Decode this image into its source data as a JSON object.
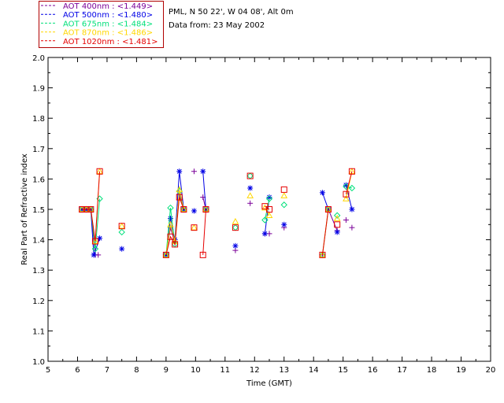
{
  "header": {
    "site_line": "PML, N 50 22', W 04 08', Alt 0m",
    "date_line": "Data from: 23 May 2002"
  },
  "chart_data": {
    "type": "scatter",
    "xlabel": "Time (GMT)",
    "ylabel": "Real Part of Refractive index",
    "xlim": [
      5,
      20
    ],
    "ylim": [
      1.0,
      2.0
    ],
    "xticks": [
      5,
      6,
      7,
      8,
      9,
      10,
      11,
      12,
      13,
      14,
      15,
      16,
      17,
      18,
      19,
      20
    ],
    "yticks": [
      1.0,
      1.1,
      1.2,
      1.3,
      1.4,
      1.5,
      1.6,
      1.7,
      1.8,
      1.9,
      2.0
    ],
    "grid": false,
    "legend_placement": "top-left outside plot",
    "series": [
      {
        "name": "AOT  400nm : <1.449>",
        "color": "#7a0099",
        "marker": "plus",
        "points": [
          [
            6.15,
            1.5
          ],
          [
            6.3,
            1.5
          ],
          [
            6.45,
            1.5
          ],
          [
            6.6,
            1.35
          ],
          [
            6.7,
            1.35
          ],
          [
            9.0,
            1.35
          ],
          [
            9.15,
            1.44
          ],
          [
            9.3,
            1.39
          ],
          [
            9.45,
            1.55
          ],
          [
            9.6,
            1.5
          ],
          [
            9.95,
            1.625
          ],
          [
            10.25,
            1.54
          ],
          [
            10.35,
            1.5
          ],
          [
            11.35,
            1.365
          ],
          [
            11.85,
            1.52
          ],
          [
            12.35,
            1.42
          ],
          [
            12.5,
            1.42
          ],
          [
            13.0,
            1.44
          ],
          [
            14.3,
            1.35
          ],
          [
            14.5,
            1.5
          ],
          [
            14.8,
            1.43
          ],
          [
            15.1,
            1.465
          ],
          [
            15.3,
            1.44
          ]
        ],
        "segments": [
          [
            0,
            4
          ],
          [
            5,
            9
          ],
          [
            11,
            12
          ],
          [
            19,
            20
          ]
        ]
      },
      {
        "name": "AOT  500nm : <1.480>",
        "color": "#0000e6",
        "marker": "asterisk",
        "points": [
          [
            6.15,
            1.5
          ],
          [
            6.3,
            1.5
          ],
          [
            6.45,
            1.5
          ],
          [
            6.55,
            1.35
          ],
          [
            6.75,
            1.405
          ],
          [
            7.5,
            1.37
          ],
          [
            9.0,
            1.35
          ],
          [
            9.15,
            1.47
          ],
          [
            9.3,
            1.4
          ],
          [
            9.45,
            1.625
          ],
          [
            9.6,
            1.5
          ],
          [
            9.95,
            1.495
          ],
          [
            10.25,
            1.625
          ],
          [
            10.35,
            1.5
          ],
          [
            11.35,
            1.38
          ],
          [
            11.85,
            1.57
          ],
          [
            12.35,
            1.42
          ],
          [
            12.5,
            1.54
          ],
          [
            13.0,
            1.45
          ],
          [
            14.3,
            1.555
          ],
          [
            14.5,
            1.5
          ],
          [
            14.8,
            1.425
          ],
          [
            15.1,
            1.58
          ],
          [
            15.3,
            1.5
          ]
        ],
        "segments": [
          [
            0,
            4
          ],
          [
            6,
            10
          ],
          [
            12,
            13
          ],
          [
            16,
            17
          ],
          [
            19,
            20
          ],
          [
            22,
            23
          ]
        ]
      },
      {
        "name": "AOT  675nm : <1.484>",
        "color": "#00e07a",
        "marker": "diamond",
        "points": [
          [
            6.15,
            1.5
          ],
          [
            6.3,
            1.5
          ],
          [
            6.45,
            1.5
          ],
          [
            6.6,
            1.37
          ],
          [
            6.75,
            1.535
          ],
          [
            7.5,
            1.425
          ],
          [
            9.0,
            1.35
          ],
          [
            9.15,
            1.505
          ],
          [
            9.3,
            1.385
          ],
          [
            9.45,
            1.56
          ],
          [
            9.6,
            1.5
          ],
          [
            10.35,
            1.5
          ],
          [
            11.35,
            1.44
          ],
          [
            11.85,
            1.61
          ],
          [
            12.35,
            1.465
          ],
          [
            12.5,
            1.535
          ],
          [
            13.0,
            1.515
          ],
          [
            14.3,
            1.35
          ],
          [
            14.5,
            1.5
          ],
          [
            14.8,
            1.48
          ],
          [
            15.1,
            1.575
          ],
          [
            15.3,
            1.57
          ]
        ],
        "segments": [
          [
            0,
            4
          ],
          [
            6,
            10
          ],
          [
            14,
            15
          ],
          [
            17,
            18
          ],
          [
            20,
            21
          ]
        ]
      },
      {
        "name": "AOT  870nm : <1.486>",
        "color": "#ffd700",
        "marker": "triangle",
        "points": [
          [
            6.15,
            1.5
          ],
          [
            6.3,
            1.5
          ],
          [
            6.45,
            1.5
          ],
          [
            6.6,
            1.395
          ],
          [
            6.75,
            1.625
          ],
          [
            7.5,
            1.445
          ],
          [
            9.0,
            1.35
          ],
          [
            9.15,
            1.45
          ],
          [
            9.3,
            1.395
          ],
          [
            9.45,
            1.565
          ],
          [
            9.6,
            1.5
          ],
          [
            9.95,
            1.44
          ],
          [
            10.35,
            1.5
          ],
          [
            11.35,
            1.46
          ],
          [
            11.85,
            1.545
          ],
          [
            12.35,
            1.505
          ],
          [
            12.5,
            1.48
          ],
          [
            13.0,
            1.545
          ],
          [
            14.3,
            1.35
          ],
          [
            14.5,
            1.5
          ],
          [
            14.8,
            1.47
          ],
          [
            15.1,
            1.535
          ],
          [
            15.3,
            1.625
          ]
        ],
        "segments": [
          [
            0,
            4
          ],
          [
            6,
            10
          ],
          [
            15,
            16
          ],
          [
            18,
            19
          ],
          [
            21,
            22
          ]
        ]
      },
      {
        "name": "AOT 1020nm : <1.481>",
        "color": "#e60000",
        "marker": "square",
        "points": [
          [
            6.15,
            1.5
          ],
          [
            6.3,
            1.5
          ],
          [
            6.45,
            1.5
          ],
          [
            6.6,
            1.395
          ],
          [
            6.75,
            1.625
          ],
          [
            7.5,
            1.445
          ],
          [
            9.0,
            1.35
          ],
          [
            9.15,
            1.41
          ],
          [
            9.3,
            1.385
          ],
          [
            9.45,
            1.54
          ],
          [
            9.6,
            1.5
          ],
          [
            9.95,
            1.44
          ],
          [
            10.25,
            1.35
          ],
          [
            10.35,
            1.5
          ],
          [
            11.35,
            1.44
          ],
          [
            11.85,
            1.61
          ],
          [
            12.35,
            1.51
          ],
          [
            12.5,
            1.5
          ],
          [
            13.0,
            1.565
          ],
          [
            14.3,
            1.35
          ],
          [
            14.5,
            1.5
          ],
          [
            14.8,
            1.45
          ],
          [
            15.1,
            1.55
          ],
          [
            15.3,
            1.625
          ]
        ],
        "segments": [
          [
            0,
            4
          ],
          [
            6,
            10
          ],
          [
            12,
            13
          ],
          [
            16,
            17
          ],
          [
            19,
            20
          ],
          [
            22,
            23
          ]
        ]
      }
    ]
  }
}
